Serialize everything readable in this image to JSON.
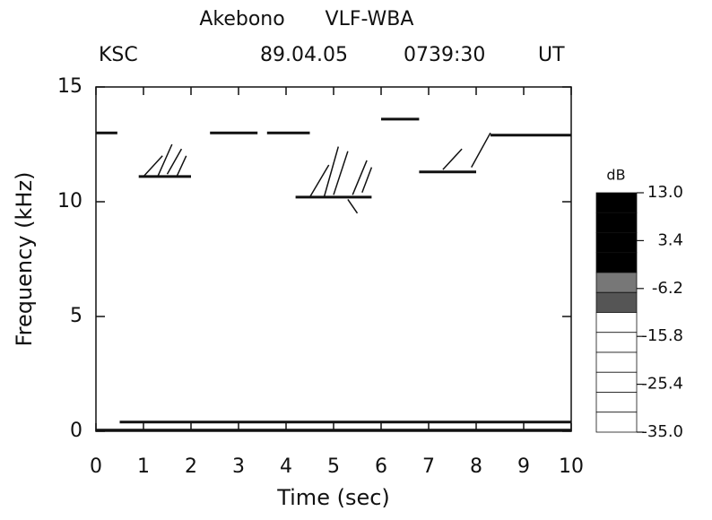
{
  "chart_data": {
    "type": "spectrogram",
    "title": "Akebono",
    "subtitle": "VLF-WBA",
    "station": "KSC",
    "date": "89.04.05",
    "time": "0739:30",
    "time_zone": "UT",
    "x_label": "Time (sec)",
    "y_label": "Frequency (kHz)",
    "xlim": [
      0,
      10
    ],
    "ylim": [
      0,
      15
    ],
    "xticks": [
      0,
      1,
      2,
      3,
      4,
      5,
      6,
      7,
      8,
      9,
      10
    ],
    "yticks": [
      0,
      5,
      10,
      15
    ],
    "color": "#111111",
    "bands": [
      {
        "x": [
          0,
          0.45
        ],
        "y": 13
      },
      {
        "x": [
          2.4,
          3.4
        ],
        "y": 13
      },
      {
        "x": [
          3.6,
          4.5
        ],
        "y": 13
      },
      {
        "x": [
          8.3,
          10
        ],
        "y": 12.9
      },
      {
        "x": [
          6,
          6.8
        ],
        "y": 13.6
      },
      {
        "x": [
          0.9,
          2
        ],
        "y": 11.1
      },
      {
        "x": [
          4.2,
          5.8
        ],
        "y": 10.2
      },
      {
        "x": [
          6.8,
          8
        ],
        "y": 11.3
      },
      {
        "x": [
          0.5,
          10
        ],
        "y": 0.4
      },
      {
        "x": [
          0,
          10
        ],
        "y": 0.05
      }
    ],
    "risers": [
      {
        "x": [
          1,
          1.4
        ],
        "y": [
          11.1,
          12
        ]
      },
      {
        "x": [
          1.3,
          1.6
        ],
        "y": [
          11.1,
          12.5
        ]
      },
      {
        "x": [
          1.5,
          1.8
        ],
        "y": [
          11.2,
          12.3
        ]
      },
      {
        "x": [
          1.7,
          1.9
        ],
        "y": [
          11.1,
          12
        ]
      },
      {
        "x": [
          4.5,
          4.9
        ],
        "y": [
          10.2,
          11.6
        ]
      },
      {
        "x": [
          4.8,
          5.1
        ],
        "y": [
          10.2,
          12.4
        ]
      },
      {
        "x": [
          5,
          5.3
        ],
        "y": [
          10.3,
          12.2
        ]
      },
      {
        "x": [
          5.4,
          5.7
        ],
        "y": [
          10.3,
          11.8
        ]
      },
      {
        "x": [
          5.6,
          5.8
        ],
        "y": [
          10.4,
          11.5
        ]
      },
      {
        "x": [
          5.3,
          5.5
        ],
        "y": [
          10.1,
          9.5
        ]
      },
      {
        "x": [
          7.3,
          7.7
        ],
        "y": [
          11.4,
          12.3
        ]
      },
      {
        "x": [
          7.9,
          8.3
        ],
        "y": [
          11.5,
          13
        ]
      }
    ],
    "colorbar": {
      "label": "dB",
      "lim": [
        -35,
        13
      ],
      "ticks": [
        {
          "value": 13,
          "label": "13.0"
        },
        3.4,
        -6.2,
        -15.8,
        -25.4,
        {
          "value": -35,
          "label": "-35.0"
        }
      ],
      "levels": [
        13,
        9,
        5,
        1,
        -3,
        -7,
        -11,
        -15,
        -19,
        -23,
        -27,
        -31,
        -35
      ],
      "level_colors": [
        "#000000",
        "#000000",
        "#000000",
        "#000000",
        "#777777",
        "#555555",
        "#ffffff",
        "#ffffff",
        "#ffffff",
        "#ffffff",
        "#ffffff",
        "#ffffff"
      ]
    }
  }
}
